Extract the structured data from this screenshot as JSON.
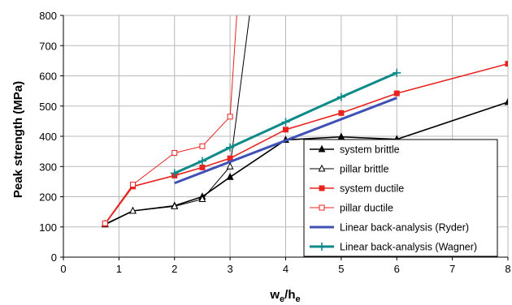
{
  "chart_data": {
    "type": "line",
    "title": "",
    "xlabel": "w",
    "xlabel_sub1": "e",
    "xlabel_mid": "/h",
    "xlabel_sub2": "e",
    "ylabel": "Peak strength (MPa)",
    "xlim": [
      0,
      8
    ],
    "ylim": [
      0,
      800
    ],
    "xticks": [
      0,
      1,
      2,
      3,
      4,
      5,
      6,
      7,
      8
    ],
    "yticks": [
      0,
      100,
      200,
      300,
      400,
      500,
      600,
      700,
      800
    ],
    "grid": true,
    "legend_position": "bottom-right",
    "series": [
      {
        "name": "system brittle",
        "color": "#000000",
        "marker": "filled-triangle",
        "line_width": 1.6,
        "x": [
          0.75,
          1.25,
          2,
          2.5,
          3,
          4,
          5,
          6,
          8
        ],
        "y": [
          108,
          153,
          170,
          200,
          265,
          388,
          398,
          390,
          513
        ]
      },
      {
        "name": "pillar brittle",
        "color": "#000000",
        "marker": "open-triangle",
        "line_width": 1,
        "x": [
          0.75,
          1.25,
          2,
          2.5,
          3,
          3.35
        ],
        "y": [
          110,
          153,
          168,
          192,
          300,
          800
        ]
      },
      {
        "name": "system ductile",
        "color": "#e8231f",
        "marker": "filled-square",
        "line_width": 1.6,
        "x": [
          0.75,
          1.25,
          2,
          2.5,
          3,
          4,
          5,
          6,
          8
        ],
        "y": [
          110,
          234,
          270,
          297,
          327,
          422,
          477,
          542,
          640
        ]
      },
      {
        "name": "pillar ductile",
        "color": "#e8231f",
        "marker": "open-square",
        "line_width": 1,
        "x": [
          0.75,
          1.25,
          2,
          2.5,
          3,
          3.12
        ],
        "y": [
          112,
          240,
          345,
          367,
          465,
          800
        ]
      },
      {
        "name": "Linear back-analysis (Ryder)",
        "color": "#3f51b5",
        "marker": "none",
        "line_width": 3,
        "x": [
          2,
          6
        ],
        "y": [
          245,
          527
        ]
      },
      {
        "name": "Linear back-analysis (Wagner)",
        "color": "#0e8a8a",
        "marker": "plus",
        "line_width": 3,
        "x": [
          2,
          2.5,
          3,
          4,
          5,
          6
        ],
        "y": [
          278,
          318,
          363,
          447,
          530,
          610
        ]
      }
    ]
  }
}
